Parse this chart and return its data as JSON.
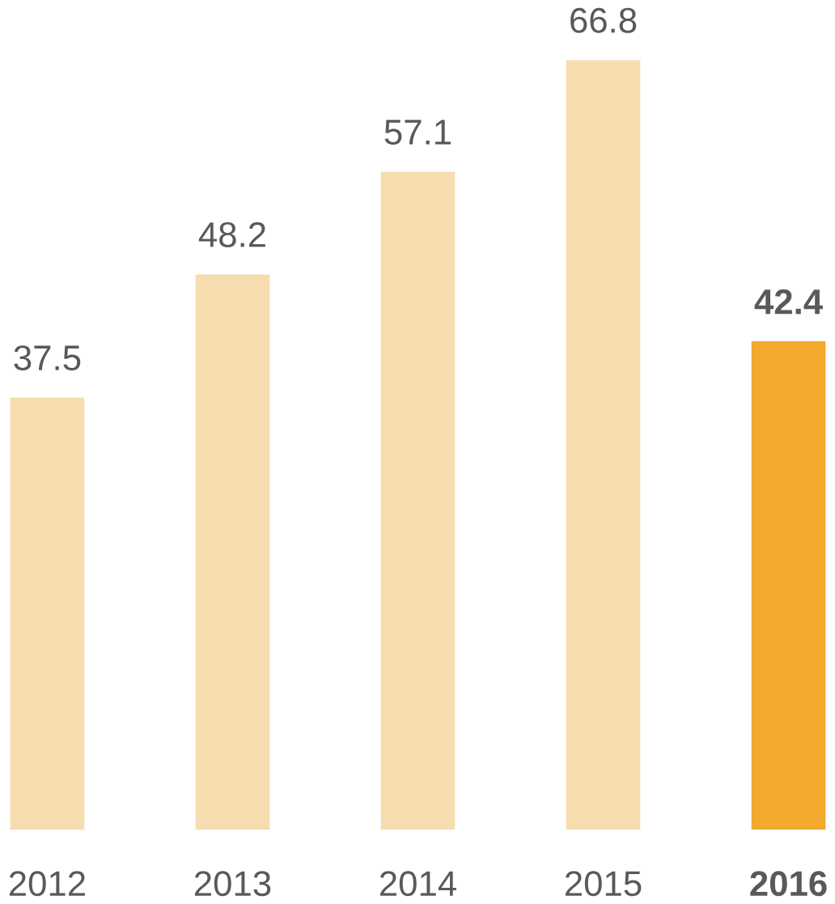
{
  "chart_data": {
    "type": "bar",
    "categories": [
      "2012",
      "2013",
      "2014",
      "2015",
      "2016"
    ],
    "values": [
      37.5,
      48.2,
      57.1,
      66.8,
      42.4
    ],
    "colors": [
      "#f6dcae",
      "#f6dcae",
      "#f6dcae",
      "#f6dcae",
      "#f2a92e"
    ],
    "data_labels": true
  }
}
